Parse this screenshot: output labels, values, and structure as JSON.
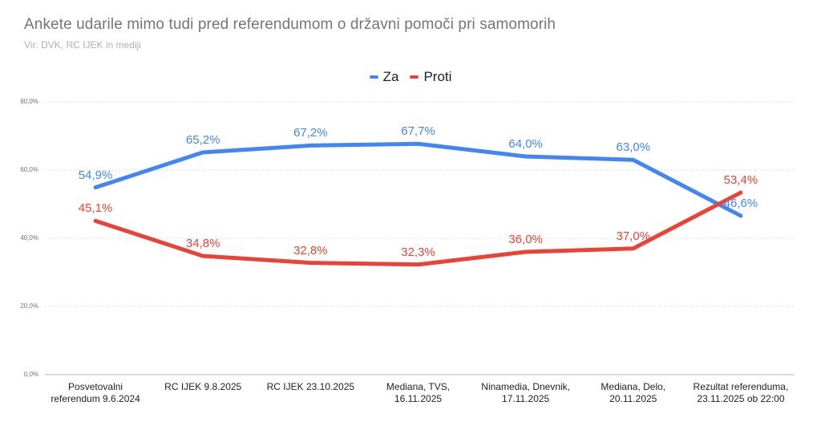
{
  "header": {
    "title": "Ankete udarile mimo tudi pred referendumom o državni pomoči pri samomorih",
    "subtitle": "Vir: DVK, RC IJEK in mediji"
  },
  "legend": [
    {
      "label": "Za",
      "color": "#4285F4"
    },
    {
      "label": "Proti",
      "color": "#EA4335"
    }
  ],
  "chart_data": {
    "type": "line",
    "title": "Ankete udarile mimo tudi pred referendumom o državni pomoči pri samomorih",
    "subtitle": "Vir: DVK, RC IJEK in mediji",
    "categories": [
      "Posvetovalni referendum 9.6.2024",
      "RC IJEK 9.8.2025",
      "RC IJEK 23.10.2025",
      "Mediana, TVS, 16.11.2025",
      "Ninamedia, Dnevnik, 17.11.2025",
      "Mediana, Delo, 20.11.2025",
      "Rezultat referenduma, 23.11.2025 ob 22:00"
    ],
    "category_lines": [
      [
        "Posvetovalni",
        "referendum 9.6.2024"
      ],
      [
        "RC IJEK 9.8.2025"
      ],
      [
        "RC IJEK 23.10.2025"
      ],
      [
        "Mediana, TVS,",
        "16.11.2025"
      ],
      [
        "Ninamedia, Dnevnik,",
        "17.11.2025"
      ],
      [
        "Mediana, Delo,",
        "20.11.2025"
      ],
      [
        "Rezultat referenduma,",
        "23.11.2025 ob 22:00"
      ]
    ],
    "series": [
      {
        "name": "Za",
        "color": "#4285F4",
        "values": [
          54.9,
          65.2,
          67.2,
          67.7,
          64.0,
          63.0,
          46.6
        ],
        "labels": [
          "54,9%",
          "65,2%",
          "67,2%",
          "67,7%",
          "64,0%",
          "63,0%",
          "46,6%"
        ]
      },
      {
        "name": "Proti",
        "color": "#EA4335",
        "values": [
          45.1,
          34.8,
          32.8,
          32.3,
          36.0,
          37.0,
          53.4
        ],
        "labels": [
          "45,1%",
          "34,8%",
          "32,8%",
          "32,3%",
          "36,0%",
          "37,0%",
          "53,4%"
        ]
      }
    ],
    "y_axis": {
      "ticks": [
        "80,0%",
        "60,0%",
        "40,0%",
        "20,0%",
        "0,0%"
      ],
      "tick_values": [
        80,
        60,
        40,
        20,
        0
      ],
      "ylim": [
        0,
        80
      ]
    },
    "xlabel": "",
    "ylabel": "",
    "grid": true,
    "gridline_color": "#dedede",
    "baseline_color": "#b5b5b5",
    "legend_position": "top"
  }
}
